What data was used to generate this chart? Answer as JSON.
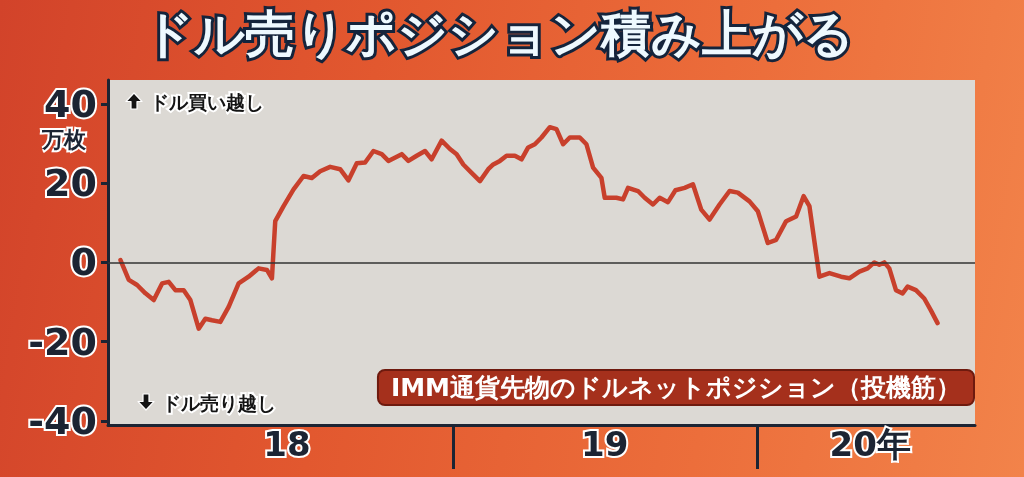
{
  "chart_data": {
    "type": "line",
    "title": "ドル売りポジション積み上がる",
    "ylabel": "万枚",
    "annotations": [
      "ドル買い越し",
      "ドル売り越し",
      "IMM通貨先物のドルネットポジション（投機筋）"
    ],
    "x": [
      "2017-11-27",
      "2017-12-07",
      "2017-12-17",
      "2017-12-27",
      "2018-01-06",
      "2018-01-16",
      "2018-01-24",
      "2018-02-01",
      "2018-02-11",
      "2018-02-19",
      "2018-03-01",
      "2018-03-09",
      "2018-03-17",
      "2018-03-27",
      "2018-04-06",
      "2018-04-18",
      "2018-04-30",
      "2018-05-12",
      "2018-05-22",
      "2018-05-28",
      "2018-06-01",
      "2018-06-11",
      "2018-06-23",
      "2018-07-05",
      "2018-07-15",
      "2018-07-25",
      "2018-08-06",
      "2018-08-18",
      "2018-08-28",
      "2018-09-07",
      "2018-09-17",
      "2018-09-27",
      "2018-10-07",
      "2018-10-15",
      "2018-10-31",
      "2018-11-08",
      "2018-11-18",
      "2018-11-28",
      "2018-12-06",
      "2018-12-18",
      "2018-12-28",
      "2019-01-05",
      "2019-01-13",
      "2019-01-23",
      "2019-02-02",
      "2019-02-12",
      "2019-02-18",
      "2019-02-26",
      "2019-03-06",
      "2019-03-16",
      "2019-03-24",
      "2019-04-01",
      "2019-04-09",
      "2019-04-17",
      "2019-04-27",
      "2019-05-05",
      "2019-05-13",
      "2019-05-21",
      "2019-06-02",
      "2019-06-10",
      "2019-06-18",
      "2019-06-28",
      "2019-07-02",
      "2019-07-16",
      "2019-07-24",
      "2019-07-30",
      "2019-08-11",
      "2019-08-19",
      "2019-08-29",
      "2019-09-06",
      "2019-09-16",
      "2019-09-25",
      "2019-10-06",
      "2019-10-16",
      "2019-10-26",
      "2019-11-05",
      "2019-11-17",
      "2019-11-29",
      "2019-12-09",
      "2019-12-23",
      "2020-01-02",
      "2020-01-14",
      "2020-01-24",
      "2020-02-05",
      "2020-02-17",
      "2020-02-26",
      "2020-03-04",
      "2020-03-16",
      "2020-03-28",
      "2020-04-11",
      "2020-04-21",
      "2020-05-03",
      "2020-05-13",
      "2020-05-21",
      "2020-05-27",
      "2020-06-02",
      "2020-06-08",
      "2020-06-16",
      "2020-06-24",
      "2020-06-30",
      "2020-07-10",
      "2020-07-20",
      "2020-07-28",
      "2020-08-05"
    ],
    "series": [
      {
        "color": "#c8402c",
        "values": [
          0.6,
          -4.4,
          -5.7,
          -7.8,
          -9.5,
          -5.3,
          -4.9,
          -7.0,
          -7.0,
          -9.5,
          -16.7,
          -14.2,
          -14.6,
          -15.0,
          -11.2,
          -5.3,
          -3.6,
          -1.5,
          -1.9,
          -4.0,
          10.4,
          14.2,
          18.4,
          21.8,
          21.3,
          23.0,
          24.1,
          23.5,
          20.7,
          25.0,
          25.2,
          28.1,
          27.3,
          25.6,
          27.3,
          25.6,
          26.9,
          28.1,
          26.0,
          30.7,
          28.6,
          27.3,
          24.7,
          22.6,
          20.5,
          23.5,
          24.7,
          25.6,
          26.9,
          26.9,
          26.0,
          29.0,
          29.8,
          31.5,
          34.1,
          33.6,
          29.8,
          31.5,
          31.5,
          29.8,
          23.9,
          21.3,
          16.3,
          16.3,
          15.9,
          18.8,
          18.0,
          16.3,
          14.6,
          16.3,
          15.2,
          18.2,
          18.8,
          19.7,
          13.3,
          10.8,
          14.6,
          18.0,
          17.6,
          15.4,
          12.9,
          4.9,
          5.7,
          10.4,
          11.6,
          16.7,
          14.2,
          -3.6,
          -2.7,
          -3.6,
          -4.0,
          -2.3,
          -1.5,
          0.0,
          -0.6,
          0.0,
          -1.5,
          -7.0,
          -7.8,
          -6.1,
          -7.0,
          -9.1,
          -12.1,
          -15.3
        ]
      }
    ],
    "xlim": [
      "2017-11-12",
      "2020-09-19"
    ],
    "xticks": [
      {
        "value": "2018-06-15",
        "label": "18"
      },
      {
        "value": "2019-01-01",
        "label": null
      },
      {
        "value": "2019-07-02",
        "label": "19"
      },
      {
        "value": "2020-01-01",
        "label": null
      },
      {
        "value": "2020-05-16",
        "label": "20年"
      }
    ],
    "ylim": [
      -41,
      46
    ],
    "yticks": [
      -40,
      -20,
      0,
      20,
      40
    ],
    "ref_lines": [
      {
        "axis": "y",
        "value": 0,
        "color": "#333333"
      }
    ],
    "grid": false,
    "marker": "none",
    "line_style": "solid"
  }
}
